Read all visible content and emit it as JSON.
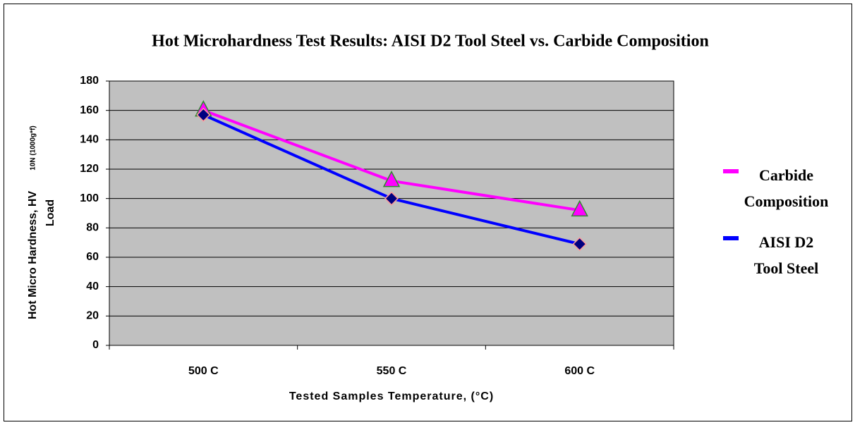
{
  "chart_data": {
    "type": "line",
    "title": "Hot Microhardness Test Results: AISI D2 Tool Steel vs. Carbide Composition",
    "y_label": {
      "main": "Hot Micro Hardness, HV",
      "subscript": "10N (1000g*f)",
      "second_line": "Load"
    },
    "x_label": "Tested Samples Temperature, (°C)",
    "categories": [
      "500 C",
      "550 C",
      "600 C"
    ],
    "series": [
      {
        "name": "Carbide Composition",
        "color": "#ff00ff",
        "marker": "triangle",
        "marker_color": "#ff00ff",
        "marker_edge": "#2e8b2e",
        "values": [
          160,
          112,
          92
        ]
      },
      {
        "name": "AISI D2 Tool Steel",
        "color": "#0000ff",
        "marker": "diamond",
        "marker_color": "#000080",
        "marker_edge": "#ff9999",
        "values": [
          157,
          100,
          69
        ]
      }
    ],
    "ylim": [
      0,
      180
    ],
    "yticks": [
      0,
      20,
      40,
      60,
      80,
      100,
      120,
      140,
      160,
      180
    ],
    "grid": true,
    "plot_background": "#c0c0c0",
    "legend": "right"
  }
}
